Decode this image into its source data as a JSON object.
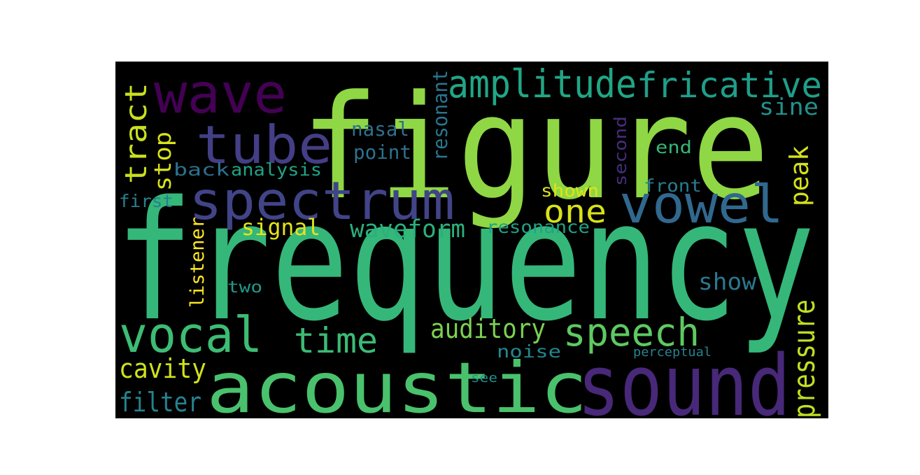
{
  "words": [
    {
      "id": "frequency",
      "text": "frequency",
      "color": "#35b779"
    },
    {
      "id": "figure",
      "text": "figure",
      "color": "#8fd744"
    },
    {
      "id": "acoustic",
      "text": "acoustic",
      "color": "#4ac16d"
    },
    {
      "id": "sound",
      "text": "sound",
      "color": "#482878"
    },
    {
      "id": "spectrum",
      "text": "spectrum",
      "color": "#414487"
    },
    {
      "id": "tube",
      "text": "tube",
      "color": "#433e85"
    },
    {
      "id": "wave",
      "text": "wave",
      "color": "#440154"
    },
    {
      "id": "vowel",
      "text": "vowel",
      "color": "#31688e"
    },
    {
      "id": "vocal",
      "text": "vocal",
      "color": "#3dbc74"
    },
    {
      "id": "speech",
      "text": "speech",
      "color": "#5ec962"
    },
    {
      "id": "amplitude",
      "text": "amplitude",
      "color": "#21a685"
    },
    {
      "id": "fricative",
      "text": "fricative",
      "color": "#1f9e89"
    },
    {
      "id": "time",
      "text": "time",
      "color": "#3bbb75"
    },
    {
      "id": "tract",
      "text": "tract",
      "color": "#c8e020"
    },
    {
      "id": "one",
      "text": "one",
      "color": "#d8e219"
    },
    {
      "id": "waveform",
      "text": "waveform",
      "color": "#2ab07f"
    },
    {
      "id": "auditory",
      "text": "auditory",
      "color": "#7ad151"
    },
    {
      "id": "pressure",
      "text": "pressure",
      "color": "#c2df23"
    },
    {
      "id": "cavity",
      "text": "cavity",
      "color": "#d0e11c"
    },
    {
      "id": "filter",
      "text": "filter",
      "color": "#25838e"
    },
    {
      "id": "signal",
      "text": "signal",
      "color": "#e5e419"
    },
    {
      "id": "show",
      "text": "show",
      "color": "#2a788e"
    },
    {
      "id": "peak",
      "text": "peak",
      "color": "#d5e21a"
    },
    {
      "id": "stop",
      "text": "stop",
      "color": "#d8e219"
    },
    {
      "id": "sine",
      "text": "sine",
      "color": "#21918c"
    },
    {
      "id": "point",
      "text": "point",
      "color": "#2c728e"
    },
    {
      "id": "nasal",
      "text": "nasal",
      "color": "#2d708e"
    },
    {
      "id": "analysis",
      "text": "analysis",
      "color": "#20a386"
    },
    {
      "id": "back",
      "text": "back",
      "color": "#2d708e"
    },
    {
      "id": "resonant",
      "text": "resonant",
      "color": "#2a768e"
    },
    {
      "id": "resonance",
      "text": "resonance",
      "color": "#1fa287"
    },
    {
      "id": "listener",
      "text": "listener",
      "color": "#fde725"
    },
    {
      "id": "shown",
      "text": "shown",
      "color": "#dde318"
    },
    {
      "id": "front",
      "text": "front",
      "color": "#287c8e"
    },
    {
      "id": "end",
      "text": "end",
      "color": "#35b779"
    },
    {
      "id": "second",
      "text": "second",
      "color": "#472d7b"
    },
    {
      "id": "first",
      "text": "first",
      "color": "#27808e"
    },
    {
      "id": "two",
      "text": "two",
      "color": "#1f9a8a"
    },
    {
      "id": "noise",
      "text": "noise",
      "color": "#24868e"
    },
    {
      "id": "perceptual",
      "text": "perceptual",
      "color": "#26828e"
    },
    {
      "id": "see",
      "text": "see",
      "color": "#20928c"
    }
  ]
}
